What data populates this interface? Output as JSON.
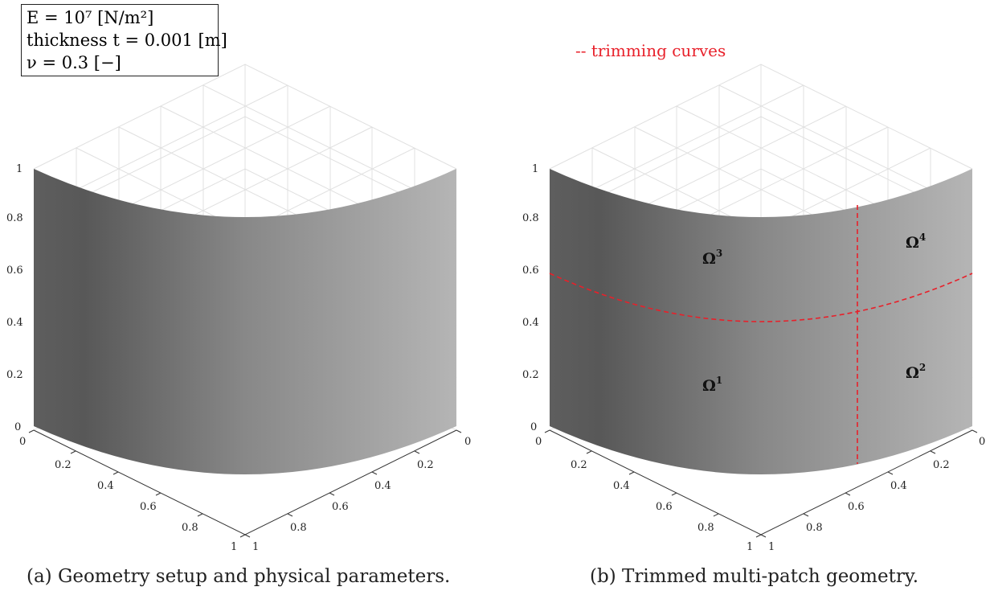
{
  "parameters": {
    "line1": "E = 10⁷ [N/m²]",
    "line2": "thickness t = 0.001 [m]",
    "line3": "ν = 0.3 [−]"
  },
  "panel_a": {
    "caption": "(a) Geometry setup and physical parameters.",
    "z_ticks": [
      "0",
      "0.2",
      "0.4",
      "0.6",
      "0.8",
      "1"
    ],
    "x_ticks": [
      "0",
      "0.2",
      "0.4",
      "0.6",
      "0.8",
      "1"
    ],
    "y_ticks": [
      "0",
      "0.2",
      "0.4",
      "0.6",
      "0.8",
      "1"
    ]
  },
  "panel_b": {
    "caption": "(b) Trimmed multi-patch geometry.",
    "legend": "-- trimming curves",
    "patches": [
      {
        "label": "Ω",
        "sup": "3"
      },
      {
        "label": "Ω",
        "sup": "4"
      },
      {
        "label": "Ω",
        "sup": "1"
      },
      {
        "label": "Ω",
        "sup": "2"
      }
    ],
    "z_ticks": [
      "0",
      "0.2",
      "0.4",
      "0.6",
      "0.8",
      "1"
    ],
    "x_ticks": [
      "0",
      "0.2",
      "0.4",
      "0.6",
      "0.8",
      "1"
    ],
    "y_ticks": [
      "0",
      "0.2",
      "0.4",
      "0.6",
      "0.8",
      "1"
    ]
  },
  "colors": {
    "surface_dark": "#555555",
    "surface_light": "#b4b4b4",
    "trim": "#e8202a"
  }
}
